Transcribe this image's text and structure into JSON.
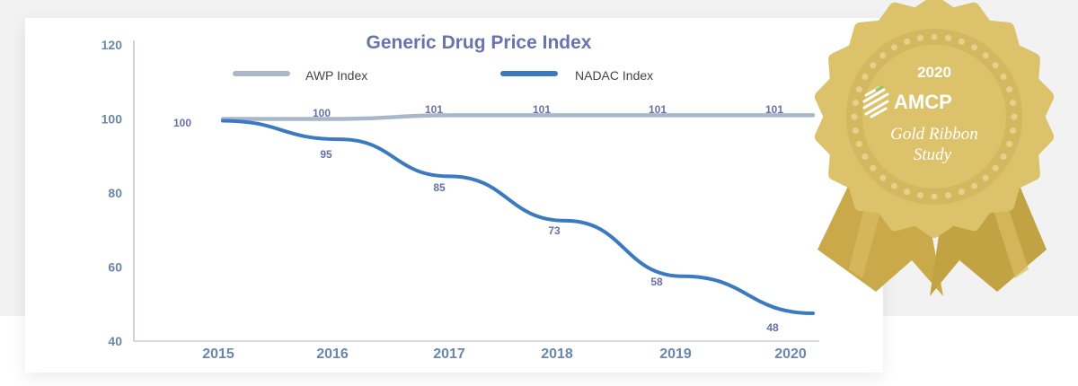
{
  "chart_data": {
    "type": "line",
    "title": "Generic Drug Price Index",
    "xlabel": "",
    "ylabel": "",
    "categories": [
      "2015",
      "2016",
      "2017",
      "2018",
      "2019",
      "2020"
    ],
    "series": [
      {
        "name": "AWP Index",
        "values": [
          100,
          100,
          101,
          101,
          101,
          101
        ],
        "color": "#a9b8c8"
      },
      {
        "name": "NADAC Index",
        "values": [
          100,
          95,
          85,
          73,
          58,
          48
        ],
        "color": "#3b7ac0"
      }
    ],
    "yticks": [
      40,
      60,
      80,
      100,
      120
    ],
    "ylim": [
      40,
      120
    ],
    "grid": false,
    "legend_position": "top"
  },
  "badge": {
    "year": "2020",
    "org": "AMCP",
    "line1": "Gold Ribbon",
    "line2": "Study"
  }
}
